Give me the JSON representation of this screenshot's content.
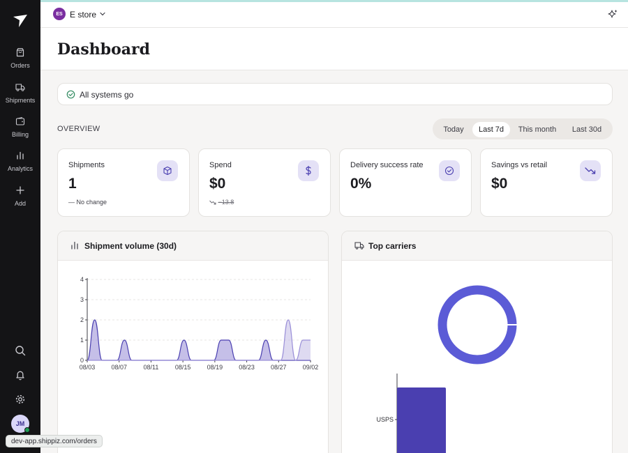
{
  "sidebar": {
    "items": [
      {
        "label": "Orders",
        "icon": "bag-icon"
      },
      {
        "label": "Shipments",
        "icon": "truck-icon"
      },
      {
        "label": "Billing",
        "icon": "wallet-icon"
      },
      {
        "label": "Analytics",
        "icon": "bar-chart-icon"
      },
      {
        "label": "Add",
        "icon": "plus-icon"
      }
    ],
    "avatar_initials": "JM"
  },
  "topbar": {
    "store_initials": "ES",
    "store_name": "E store"
  },
  "header": {
    "title": "Dashboard"
  },
  "status": {
    "text": "All systems go"
  },
  "overview": {
    "label": "OVERVIEW",
    "tabs": [
      "Today",
      "Last 7d",
      "This month",
      "Last 30d"
    ],
    "active_tab": "Last 7d"
  },
  "cards": [
    {
      "label": "Shipments",
      "value": "1",
      "sub": "No change",
      "icon": "box-icon"
    },
    {
      "label": "Spend",
      "value": "$0",
      "sub": "−13.8",
      "icon": "dollar-icon"
    },
    {
      "label": "Delivery success rate",
      "value": "0%",
      "sub": "",
      "icon": "check-circle-icon"
    },
    {
      "label": "Savings vs retail",
      "value": "$0",
      "sub": "",
      "icon": "trend-down-icon"
    }
  ],
  "volume_panel": {
    "title": "Shipment volume (30d)"
  },
  "carriers_panel": {
    "title": "Top carriers"
  },
  "colors": {
    "accent": "#5b5bd6",
    "bar": "#4a3fb0",
    "area": "#b6addf"
  },
  "chart_data": [
    {
      "type": "area",
      "title": "Shipment volume (30d)",
      "x_ticks": [
        "08/03",
        "08/07",
        "08/11",
        "08/15",
        "08/19",
        "08/23",
        "08/27",
        "09/02"
      ],
      "y_ticks": [
        "0",
        "1",
        "2",
        "3",
        "4"
      ],
      "ylim": [
        0,
        4
      ],
      "x": [
        0,
        1,
        2,
        3,
        4,
        5,
        6,
        7,
        8,
        9,
        10,
        11,
        12,
        13,
        14,
        15,
        16,
        17,
        18,
        19,
        20,
        21,
        22,
        23,
        24,
        25,
        26,
        27,
        28,
        29,
        30
      ],
      "series": [
        {
          "values": [
            0,
            2,
            0,
            0,
            0,
            1,
            0,
            0,
            0,
            0,
            0,
            0,
            0,
            1,
            0,
            0,
            0,
            0,
            1,
            1,
            0,
            0,
            0,
            0,
            1,
            0,
            0,
            0,
            0,
            0,
            0
          ]
        },
        {
          "values": [
            0,
            0,
            0,
            0,
            0,
            0,
            0,
            0,
            0,
            0,
            0,
            0,
            0,
            0,
            0,
            0,
            0,
            0,
            0,
            0,
            0,
            0,
            0,
            0,
            0,
            0,
            0,
            2,
            0,
            1,
            1
          ]
        }
      ],
      "grid": true
    },
    {
      "type": "pie",
      "title": "Top carriers",
      "categories": [
        "USPS"
      ],
      "values": [
        1
      ]
    },
    {
      "type": "bar",
      "categories": [
        "USPS"
      ],
      "values": [
        1
      ]
    }
  ],
  "url_tooltip": "dev-app.shippiz.com/orders"
}
